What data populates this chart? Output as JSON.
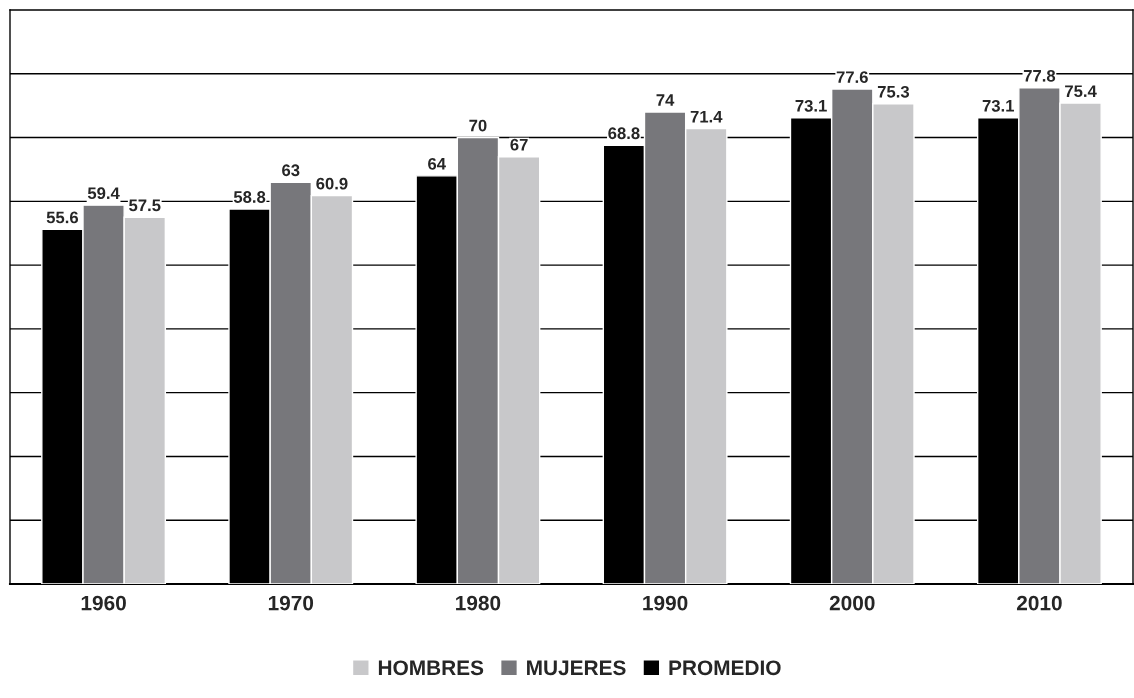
{
  "chart_data": {
    "type": "bar",
    "categories": [
      "1960",
      "1970",
      "1980",
      "1990",
      "2000",
      "2010"
    ],
    "series": [
      {
        "name": "PROMEDIO",
        "color": "#000000",
        "values": [
          55.6,
          58.8,
          64,
          68.8,
          73.1,
          73.1
        ]
      },
      {
        "name": "MUJERES",
        "color": "#77777b",
        "values": [
          59.4,
          63,
          70,
          74,
          77.6,
          77.8
        ]
      },
      {
        "name": "HOMBRES",
        "color": "#c8c8ca",
        "values": [
          57.5,
          60.9,
          67,
          71.4,
          75.3,
          75.4
        ]
      }
    ],
    "ylim": [
      0,
      90
    ],
    "yticks": [
      {
        "value": 10,
        "label": null
      },
      {
        "value": 20,
        "label": null
      },
      {
        "value": 30,
        "label": null
      },
      {
        "value": 40,
        "label": null
      },
      {
        "value": 50,
        "label": null
      },
      {
        "value": 60,
        "label": null
      },
      {
        "value": 70,
        "label": null
      },
      {
        "value": 80,
        "label": null
      }
    ],
    "tick_labels": "x",
    "grid": "y",
    "data_labels": true,
    "legend": "bottom"
  }
}
